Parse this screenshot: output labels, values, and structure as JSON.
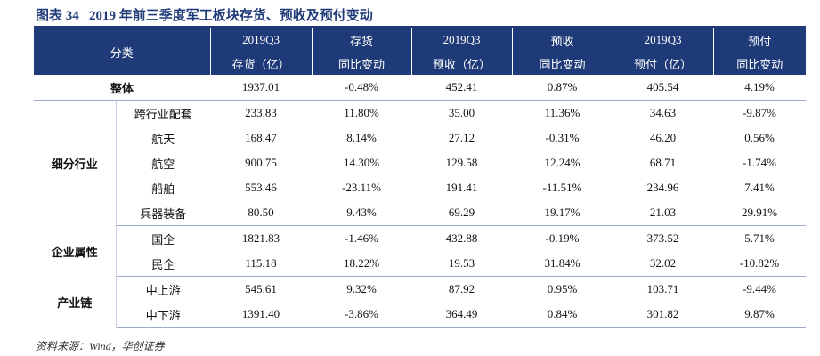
{
  "title": "图表 34   2019 年前三季度军工板块存货、预收及预付变动",
  "header": {
    "category": "分类",
    "columns": [
      {
        "top": "2019Q3",
        "bottom": "存货（亿）"
      },
      {
        "top": "存货",
        "bottom": "同比变动"
      },
      {
        "top": "2019Q3",
        "bottom": "预收（亿）"
      },
      {
        "top": "预收",
        "bottom": "同比变动"
      },
      {
        "top": "2019Q3",
        "bottom": "预付（亿）"
      },
      {
        "top": "预付",
        "bottom": "同比变动"
      }
    ]
  },
  "total": {
    "label": "整体",
    "values": [
      "1937.01",
      "-0.48%",
      "452.41",
      "0.87%",
      "405.54",
      "4.19%"
    ]
  },
  "groups": [
    {
      "label": "细分行业",
      "rows": [
        {
          "label": "跨行业配套",
          "values": [
            "233.83",
            "11.80%",
            "35.00",
            "11.36%",
            "34.63",
            "-9.87%"
          ]
        },
        {
          "label": "航天",
          "values": [
            "168.47",
            "8.14%",
            "27.12",
            "-0.31%",
            "46.20",
            "0.56%"
          ]
        },
        {
          "label": "航空",
          "values": [
            "900.75",
            "14.30%",
            "129.58",
            "12.24%",
            "68.71",
            "-1.74%"
          ]
        },
        {
          "label": "船舶",
          "values": [
            "553.46",
            "-23.11%",
            "191.41",
            "-11.51%",
            "234.96",
            "7.41%"
          ]
        },
        {
          "label": "兵器装备",
          "values": [
            "80.50",
            "9.43%",
            "69.29",
            "19.17%",
            "21.03",
            "29.91%"
          ]
        }
      ]
    },
    {
      "label": "企业属性",
      "rows": [
        {
          "label": "国企",
          "values": [
            "1821.83",
            "-1.46%",
            "432.88",
            "-0.19%",
            "373.52",
            "5.71%"
          ]
        },
        {
          "label": "民企",
          "values": [
            "115.18",
            "18.22%",
            "19.53",
            "31.84%",
            "32.02",
            "-10.82%"
          ]
        }
      ]
    },
    {
      "label": "产业链",
      "rows": [
        {
          "label": "中上游",
          "values": [
            "545.61",
            "9.32%",
            "87.92",
            "0.95%",
            "103.71",
            "-9.44%"
          ]
        },
        {
          "label": "中下游",
          "values": [
            "1391.40",
            "-3.86%",
            "364.49",
            "0.84%",
            "301.82",
            "9.87%"
          ]
        }
      ]
    }
  ],
  "source": "资料来源：Wind，华创证券"
}
